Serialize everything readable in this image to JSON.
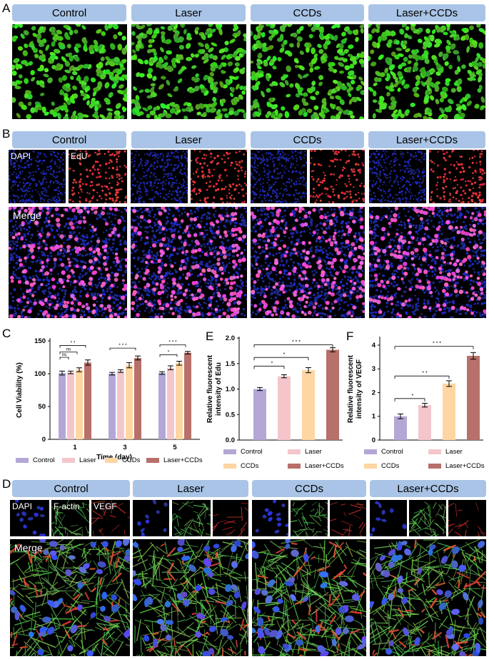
{
  "panels": {
    "A": "A",
    "B": "B",
    "C": "C",
    "D": "D",
    "E": "E",
    "F": "F"
  },
  "groups": [
    "Control",
    "Laser",
    "CCDs",
    "Laser+CCDs"
  ],
  "channels": {
    "dapi": "DAPI",
    "edu": "EdU",
    "merge": "Merge",
    "factin": "F-actin",
    "vegf": "VEGF"
  },
  "colors": {
    "control": "#b4a7d6",
    "laser": "#f4c6cc",
    "ccds": "#fdd6a2",
    "laser_ccds": "#b7706a",
    "header": "#a9c4e6"
  },
  "chart_data": [
    {
      "id": "C",
      "type": "bar",
      "ylabel": "Cell Viability (%)",
      "xlabel": "Time (day)",
      "categories": [
        "1",
        "3",
        "5"
      ],
      "yticks": [
        0,
        50,
        100,
        150
      ],
      "ylim": [
        0,
        150
      ],
      "series": [
        {
          "name": "Control",
          "values": [
            101,
            100,
            101
          ],
          "errors": [
            3,
            2,
            2
          ]
        },
        {
          "name": "Laser",
          "values": [
            102,
            104,
            109
          ],
          "errors": [
            2,
            2,
            3
          ]
        },
        {
          "name": "CCDs",
          "values": [
            106,
            113,
            116
          ],
          "errors": [
            3,
            4,
            3
          ]
        },
        {
          "name": "Laser+CCDs",
          "values": [
            117,
            124,
            132
          ],
          "errors": [
            4,
            3,
            2
          ]
        }
      ],
      "significance": [
        {
          "day": "1",
          "labels": [
            "ns",
            "ns",
            "* *"
          ]
        },
        {
          "day": "3",
          "labels": [
            "* * *"
          ]
        },
        {
          "day": "5",
          "labels": [
            "*",
            "* * *"
          ]
        }
      ],
      "legend": "bottom"
    },
    {
      "id": "E",
      "type": "bar",
      "ylabel": "Relative fluorescent intensity of Edu",
      "categories": [
        "Control",
        "Laser",
        "CCDs",
        "Laser+CCDs"
      ],
      "yticks": [
        "0.0",
        "0.5",
        "1.0",
        "1.5",
        "2.0"
      ],
      "ylim": [
        0,
        2.0
      ],
      "values": [
        1.0,
        1.25,
        1.37,
        1.77
      ],
      "errors": [
        0.03,
        0.03,
        0.05,
        0.04
      ],
      "significance": [
        "*",
        "* * *"
      ],
      "legend": "bottom"
    },
    {
      "id": "F",
      "type": "bar",
      "ylabel": "Relative fluorescent intensity of VEGF",
      "categories": [
        "Control",
        "Laser",
        "CCDs",
        "Laser+CCDs"
      ],
      "yticks": [
        "0",
        "1",
        "2",
        "3",
        "4"
      ],
      "ylim": [
        0,
        4.3
      ],
      "values": [
        1.0,
        1.47,
        2.38,
        3.55
      ],
      "errors": [
        0.1,
        0.08,
        0.12,
        0.14
      ],
      "significance": [
        "*",
        "* *",
        "* * *"
      ],
      "legend": "bottom"
    }
  ]
}
